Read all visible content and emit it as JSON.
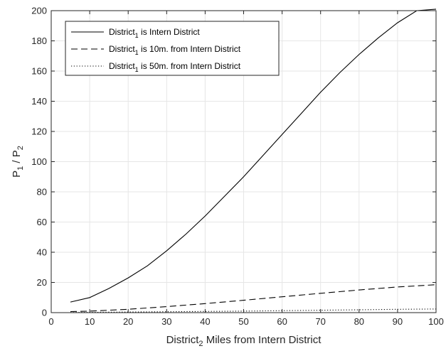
{
  "chart_data": {
    "type": "line",
    "xlabel": {
      "main": "District",
      "sub": "2",
      "rest": " Miles from Intern District"
    },
    "ylabel": {
      "a": "P",
      "a_sub": "1",
      "sep": " / ",
      "b": "P",
      "b_sub": "2"
    },
    "xlim": [
      0,
      100
    ],
    "ylim": [
      0,
      200
    ],
    "xticks": [
      0,
      10,
      20,
      30,
      40,
      50,
      60,
      70,
      80,
      90,
      100
    ],
    "yticks": [
      0,
      20,
      40,
      60,
      80,
      100,
      120,
      140,
      160,
      180,
      200
    ],
    "grid": true,
    "legend_position": "top-left",
    "colors": {
      "line": "#000000",
      "grid": "#e6e6e6",
      "axis": "#262626"
    },
    "series": [
      {
        "name": {
          "main": "District",
          "sub": "1",
          "rest": " is Intern District"
        },
        "style": "solid",
        "x": [
          5,
          10,
          15,
          20,
          25,
          30,
          35,
          40,
          45,
          50,
          55,
          60,
          65,
          70,
          75,
          80,
          85,
          90,
          95,
          100
        ],
        "y": [
          7,
          10,
          16,
          23,
          31,
          41,
          52,
          64,
          77,
          90,
          104,
          118,
          132,
          146,
          159,
          171,
          182,
          192,
          200,
          201
        ]
      },
      {
        "name": {
          "main": "District",
          "sub": "1",
          "rest": " is 10m. from Intern District"
        },
        "style": "dashed",
        "x": [
          5,
          10,
          20,
          30,
          40,
          50,
          60,
          70,
          80,
          90,
          100
        ],
        "y": [
          0.7,
          1,
          2.2,
          4,
          6,
          8.2,
          10.5,
          12.8,
          15,
          17,
          18.5
        ]
      },
      {
        "name": {
          "main": "District",
          "sub": "1",
          "rest": " is 50m. from Intern District"
        },
        "style": "dotted",
        "x": [
          5,
          10,
          20,
          30,
          40,
          50,
          60,
          70,
          80,
          90,
          100
        ],
        "y": [
          0.1,
          0.2,
          0.4,
          0.6,
          0.8,
          1.0,
          1.3,
          1.6,
          1.9,
          2.2,
          2.4
        ]
      }
    ]
  }
}
